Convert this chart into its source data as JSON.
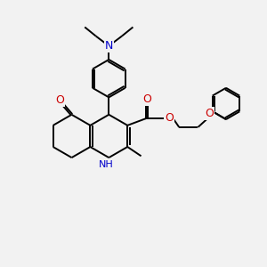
{
  "bg_color": "#f2f2f2",
  "bond_color": "#000000",
  "N_color": "#0000cc",
  "O_color": "#cc0000",
  "lw": 1.4,
  "figsize": [
    3.0,
    3.0
  ],
  "dpi": 100,
  "xlim": [
    0,
    10
  ],
  "ylim": [
    0,
    10
  ]
}
